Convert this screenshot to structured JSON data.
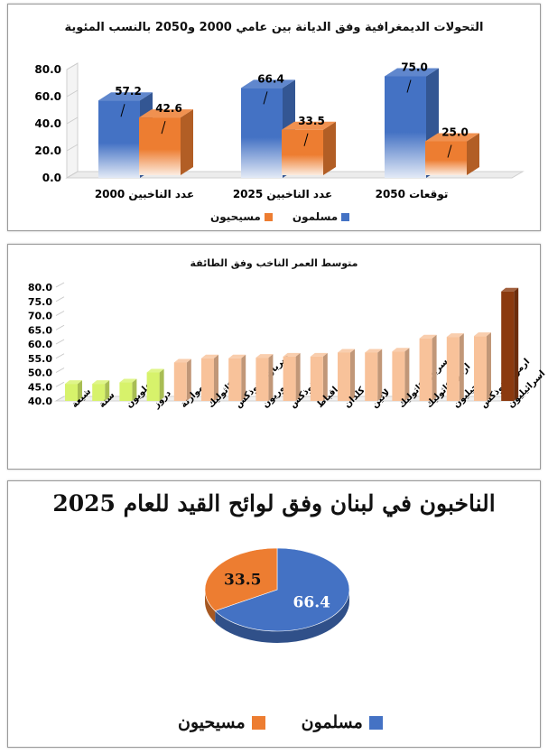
{
  "chart_data": [
    {
      "type": "bar",
      "title": "التحولات الديمغرافية وفق الديانة بين عامي 2000 و2050 بالنسب المئوية",
      "categories": [
        "عدد الناخبين 2000",
        "عدد الناخبين 2025",
        "توقعات 2050"
      ],
      "series": [
        {
          "name": "مسلمون",
          "values": [
            57.2,
            66.4,
            75.0
          ]
        },
        {
          "name": "مسيحيون",
          "values": [
            42.6,
            33.5,
            25.0
          ]
        }
      ],
      "yticks": [
        "0.0",
        "20.0",
        "40.0",
        "60.0",
        "80.0"
      ],
      "value_labels": [
        [
          "57.2",
          "66.4",
          "75.0"
        ],
        [
          "42.6",
          "33.5",
          "25.0"
        ]
      ],
      "ylim": [
        0,
        80
      ],
      "colors": [
        "#4472C4",
        "#ED7D31"
      ],
      "legend": "bottom"
    },
    {
      "type": "bar",
      "title": "متوسط العمر الناخب وفق الطائفة",
      "categories": [
        "شيعة",
        "سنة",
        "علويون",
        "دروز",
        "موارنة",
        "كاثوليك",
        "سريان ارثوذكس",
        "اشوريون",
        "ارثوذكس",
        "اقباط",
        "كلدان",
        "لاتين",
        "سريان كاثوليك",
        "ارمن كاثوليك",
        "انجيليون",
        "ارمن ارثوذكس",
        "اسرائيليون"
      ],
      "values": [
        46.0,
        46.0,
        46.5,
        50.0,
        53.5,
        55.0,
        55.0,
        55.2,
        55.6,
        55.6,
        57.0,
        57.0,
        57.4,
        62.0,
        62.5,
        62.8,
        78.5
      ],
      "yticks": [
        "40.0",
        "45.0",
        "50.0",
        "55.0",
        "60.0",
        "65.0",
        "70.0",
        "75.0",
        "80.0"
      ],
      "ylim": [
        40,
        80
      ],
      "colors": {
        "green": "#D7F26B",
        "peach": "#F8C29A",
        "brown": "#8B3A0F"
      }
    },
    {
      "type": "pie",
      "title": "الناخبون في لبنان وفق لوائح القيد للعام 2025",
      "slices": [
        {
          "name": "مسلمون",
          "value": 66.4,
          "label": "66.4",
          "color": "#4472C4"
        },
        {
          "name": "مسيحيون",
          "value": 33.5,
          "label": "33.5",
          "color": "#ED7D31"
        }
      ],
      "legend": "bottom"
    }
  ]
}
